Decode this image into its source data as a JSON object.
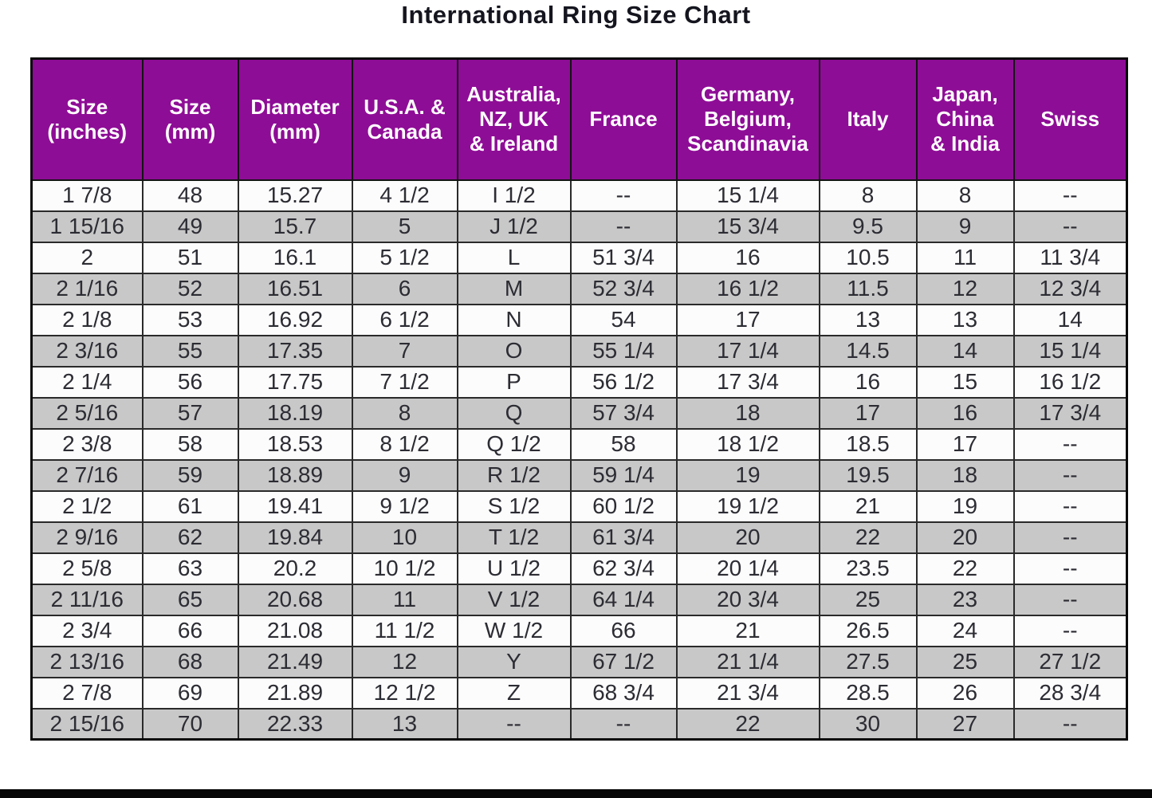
{
  "title": "International Ring Size Chart",
  "colors": {
    "header_bg": "#8e0d96",
    "header_text": "#ffffff",
    "row_bg": "#fcfcfc",
    "row_alt_bg": "#c8c8c8",
    "border": "#2a2a2a",
    "title_text": "#15151f",
    "bottom_bar": "#070707"
  },
  "table": {
    "header_lines": [
      "Size\n(inches)",
      "Size\n(mm)",
      "Diameter\n(mm)",
      "U.S.A. &\nCanada",
      "Australia,\nNZ, UK\n& Ireland",
      "France",
      "Germany,\nBelgium,\nScandinavia",
      "Italy",
      "Japan,\nChina\n& India",
      "Swiss"
    ]
  },
  "chart_data": {
    "type": "table",
    "title": "International Ring Size Chart",
    "columns": [
      "Size (inches)",
      "Size (mm)",
      "Diameter (mm)",
      "U.S.A. & Canada",
      "Australia, NZ, UK & Ireland",
      "France",
      "Germany, Belgium, Scandinavia",
      "Italy",
      "Japan, China & India",
      "Swiss"
    ],
    "rows": [
      [
        "1 7/8",
        "48",
        "15.27",
        "4 1/2",
        "I 1/2",
        "--",
        "15 1/4",
        "8",
        "8",
        "--"
      ],
      [
        "1 15/16",
        "49",
        "15.7",
        "5",
        "J 1/2",
        "--",
        "15 3/4",
        "9.5",
        "9",
        "--"
      ],
      [
        "2",
        "51",
        "16.1",
        "5 1/2",
        "L",
        "51 3/4",
        "16",
        "10.5",
        "11",
        "11 3/4"
      ],
      [
        "2 1/16",
        "52",
        "16.51",
        "6",
        "M",
        "52 3/4",
        "16 1/2",
        "11.5",
        "12",
        "12 3/4"
      ],
      [
        "2 1/8",
        "53",
        "16.92",
        "6 1/2",
        "N",
        "54",
        "17",
        "13",
        "13",
        "14"
      ],
      [
        "2 3/16",
        "55",
        "17.35",
        "7",
        "O",
        "55 1/4",
        "17 1/4",
        "14.5",
        "14",
        "15 1/4"
      ],
      [
        "2 1/4",
        "56",
        "17.75",
        "7 1/2",
        "P",
        "56 1/2",
        "17 3/4",
        "16",
        "15",
        "16 1/2"
      ],
      [
        "2 5/16",
        "57",
        "18.19",
        "8",
        "Q",
        "57 3/4",
        "18",
        "17",
        "16",
        "17 3/4"
      ],
      [
        "2 3/8",
        "58",
        "18.53",
        "8 1/2",
        "Q 1/2",
        "58",
        "18 1/2",
        "18.5",
        "17",
        "--"
      ],
      [
        "2 7/16",
        "59",
        "18.89",
        "9",
        "R 1/2",
        "59 1/4",
        "19",
        "19.5",
        "18",
        "--"
      ],
      [
        "2 1/2",
        "61",
        "19.41",
        "9 1/2",
        "S 1/2",
        "60 1/2",
        "19 1/2",
        "21",
        "19",
        "--"
      ],
      [
        "2 9/16",
        "62",
        "19.84",
        "10",
        "T 1/2",
        "61 3/4",
        "20",
        "22",
        "20",
        "--"
      ],
      [
        "2 5/8",
        "63",
        "20.2",
        "10 1/2",
        "U 1/2",
        "62 3/4",
        "20 1/4",
        "23.5",
        "22",
        "--"
      ],
      [
        "2 11/16",
        "65",
        "20.68",
        "11",
        "V 1/2",
        "64 1/4",
        "20 3/4",
        "25",
        "23",
        "--"
      ],
      [
        "2 3/4",
        "66",
        "21.08",
        "11 1/2",
        "W 1/2",
        "66",
        "21",
        "26.5",
        "24",
        "--"
      ],
      [
        "2 13/16",
        "68",
        "21.49",
        "12",
        "Y",
        "67 1/2",
        "21 1/4",
        "27.5",
        "25",
        "27 1/2"
      ],
      [
        "2 7/8",
        "69",
        "21.89",
        "12 1/2",
        "Z",
        "68 3/4",
        "21 3/4",
        "28.5",
        "26",
        "28 3/4"
      ],
      [
        "2 15/16",
        "70",
        "22.33",
        "13",
        "--",
        "--",
        "22",
        "30",
        "27",
        "--"
      ]
    ]
  }
}
